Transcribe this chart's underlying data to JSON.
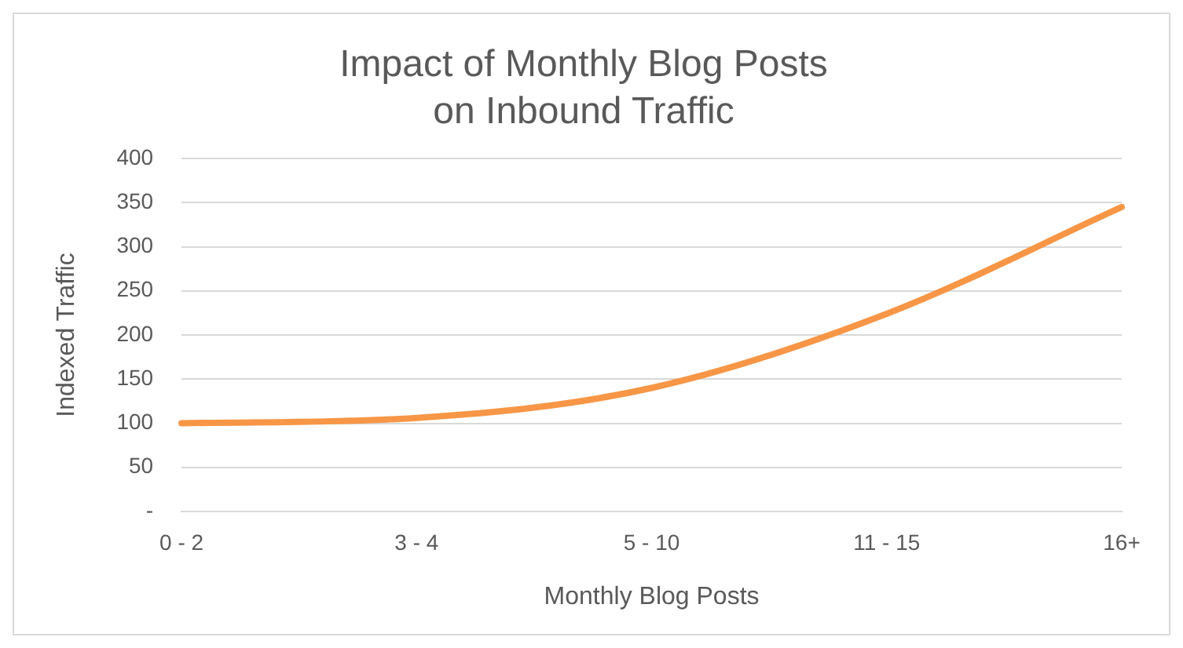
{
  "chart_data": {
    "type": "line",
    "title": "Impact of Monthly Blog Posts\non Inbound Traffic",
    "xlabel": "Monthly Blog Posts",
    "ylabel": "Indexed Traffic",
    "categories": [
      "0 - 2",
      "3 - 4",
      "5 - 10",
      "11 - 15",
      "16+"
    ],
    "series": [
      {
        "color": "#f79646",
        "values": [
          100,
          106,
          140,
          224,
          345
        ]
      }
    ],
    "ylim": [
      0,
      400
    ],
    "yticks": [
      {
        "value": 0,
        "label": "-"
      },
      50,
      100,
      150,
      200,
      250,
      300,
      350,
      400
    ],
    "grid": "y",
    "legend": false,
    "marker": "none",
    "line_style": "solid"
  }
}
